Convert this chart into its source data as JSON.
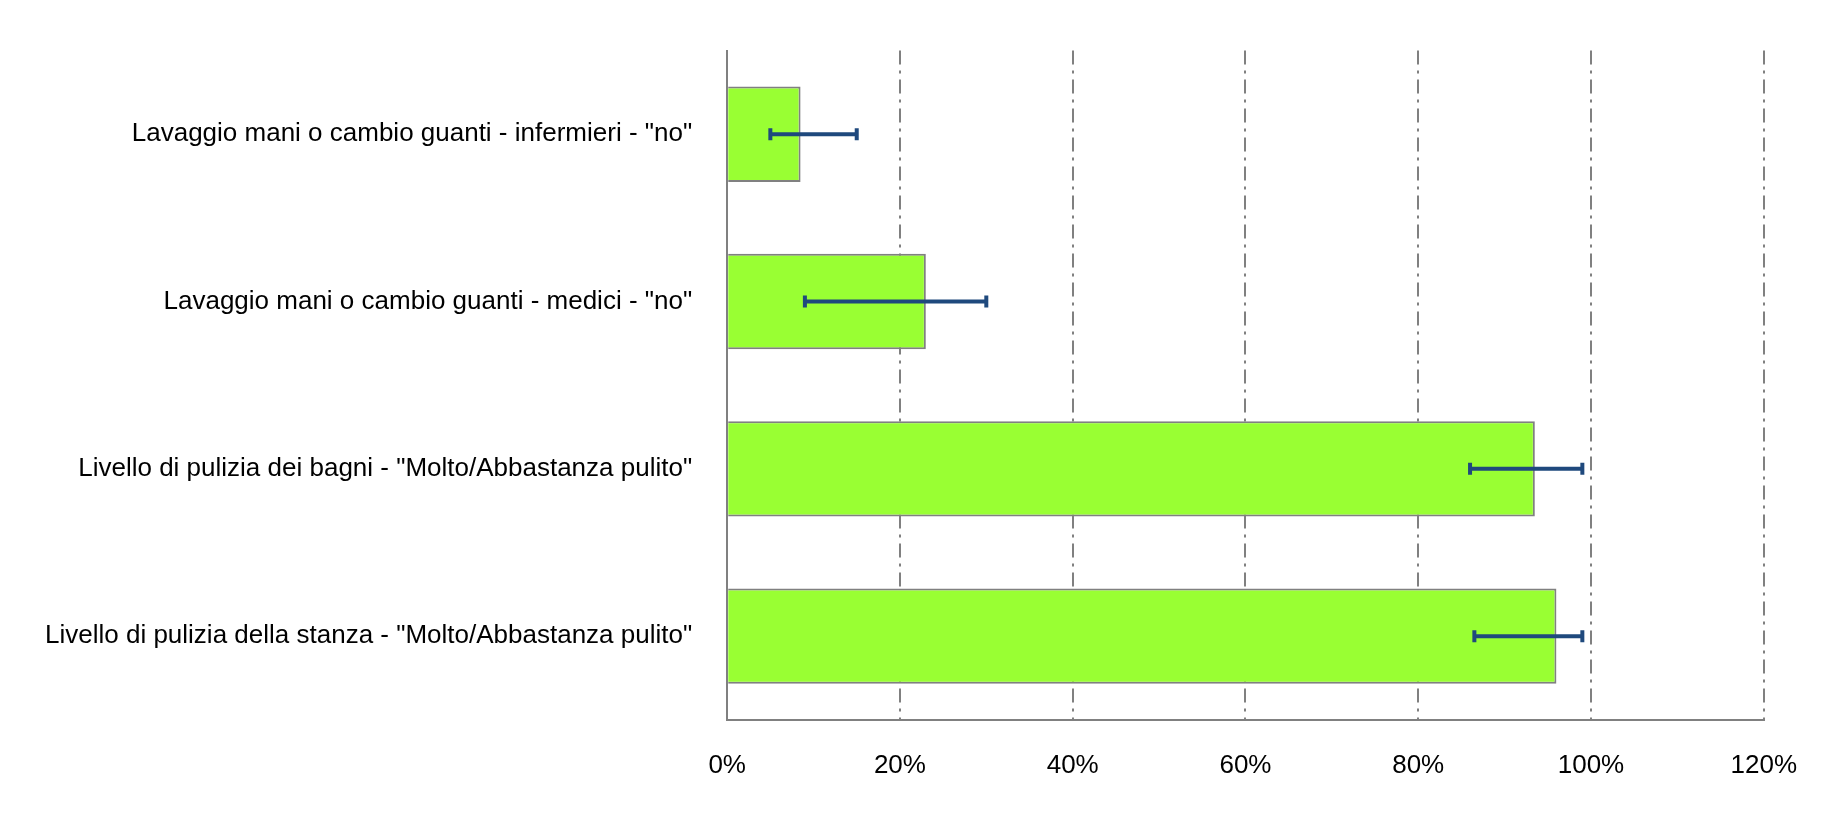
{
  "chart_data": {
    "type": "bar",
    "orientation": "horizontal",
    "categories": [
      "Lavaggio mani o cambio guanti - infermieri - \"no\"",
      "Lavaggio mani o cambio guanti - medici - \"no\"",
      "Livello di pulizia dei bagni - \"Molto/Abbastanza pulito\"",
      "Livello di pulizia della stanza - \"Molto/Abbastanza pulito\""
    ],
    "values": [
      8.5,
      23,
      93.5,
      96
    ],
    "errors": [
      [
        5,
        15
      ],
      [
        9,
        30
      ],
      [
        86,
        99
      ],
      [
        86.5,
        99
      ]
    ],
    "color": "#99ff33",
    "xlim": [
      0,
      120
    ],
    "xticks": [
      {
        "value": 0,
        "label": "0%"
      },
      {
        "value": 20,
        "label": "20%"
      },
      {
        "value": 40,
        "label": "40%"
      },
      {
        "value": 60,
        "label": "60%"
      },
      {
        "value": 80,
        "label": "80%"
      },
      {
        "value": 100,
        "label": "100%"
      },
      {
        "value": 120,
        "label": "120%"
      }
    ],
    "grid": "x"
  }
}
